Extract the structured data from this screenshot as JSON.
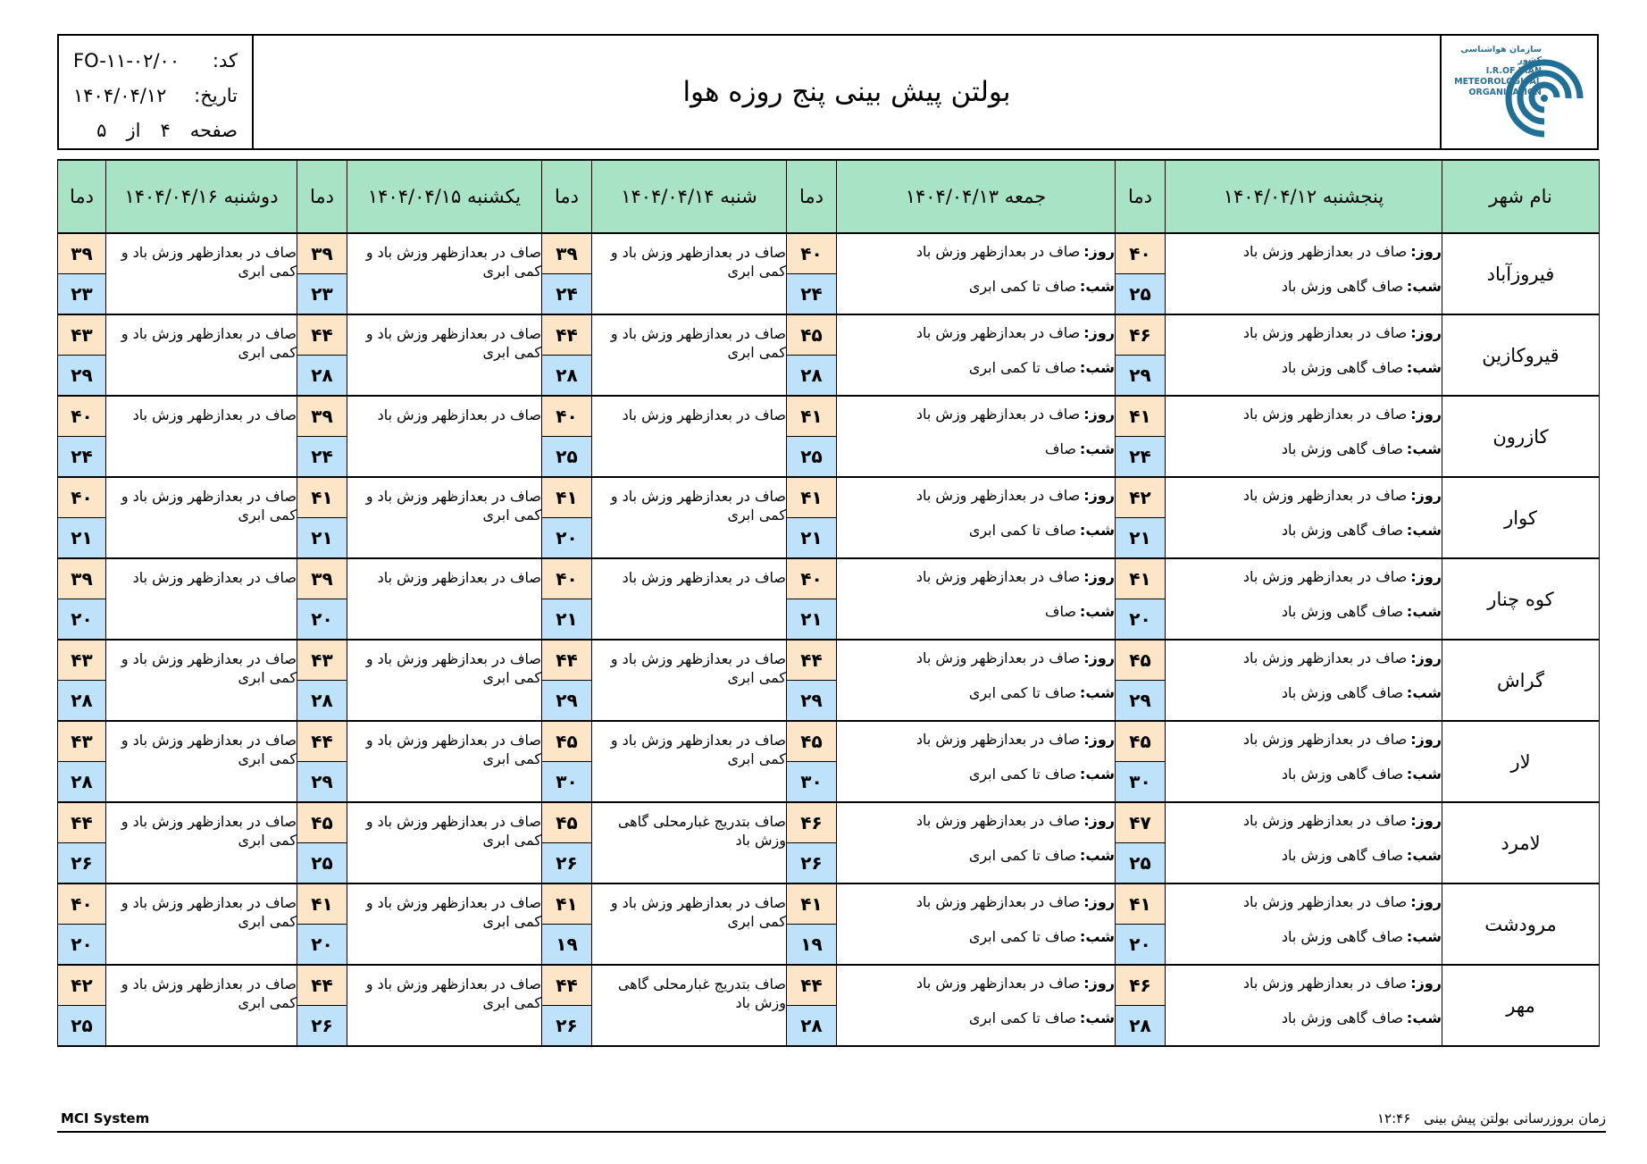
{
  "header": {
    "title": "بولتن پیش بینی پنج روزه هوا",
    "code_label": "کد:",
    "code_value": "FO-۱۱-۰۲/۰۰",
    "date_label": "تاریخ:",
    "date_value": "۱۴۰۴/۰۴/۱۲",
    "page_label": "صفحه",
    "page_current": "۴",
    "page_of": "از",
    "page_total": "۵",
    "logo_text": [
      "سازمان هواشناسی کشور",
      "I.R.OF IRAN",
      "METEOROLOGICAL",
      "ORGANIZATION"
    ],
    "logo_color": "#1f6f96"
  },
  "table": {
    "city_header": "نام شهر",
    "temp_header": "دما",
    "day_label": "روز:",
    "night_label": "شب:",
    "days": [
      "پنجشنبه ۱۴۰۴/۰۴/۱۲",
      "جمعه ۱۴۰۴/۰۴/۱۳",
      "شنبه ۱۴۰۴/۰۴/۱۴",
      "یکشنبه ۱۴۰۴/۰۴/۱۵",
      "دوشنبه ۱۴۰۴/۰۴/۱۶"
    ],
    "rows": [
      {
        "city": "فیروزآباد",
        "d1": {
          "day": "صاف در بعدازظهر وزش باد",
          "night": "صاف گاهی وزش باد",
          "hi": "۴۰",
          "lo": "۲۵"
        },
        "d2": {
          "day": "صاف در بعدازظهر وزش باد",
          "night": "صاف تا کمی ابری",
          "hi": "۴۰",
          "lo": "۲۴"
        },
        "d3": {
          "text": "صاف در بعدازظهر وزش باد و کمی ابری",
          "hi": "۳۹",
          "lo": "۲۴"
        },
        "d4": {
          "text": "صاف در بعدازظهر وزش باد و کمی ابری",
          "hi": "۳۹",
          "lo": "۲۳"
        },
        "d5": {
          "text": "صاف در بعدازظهر وزش باد و کمی ابری",
          "hi": "۳۹",
          "lo": "۲۳"
        }
      },
      {
        "city": "قیروکازین",
        "d1": {
          "day": "صاف در بعدازظهر وزش باد",
          "night": "صاف گاهی وزش باد",
          "hi": "۴۶",
          "lo": "۲۹"
        },
        "d2": {
          "day": "صاف در بعدازظهر وزش باد",
          "night": "صاف تا کمی ابری",
          "hi": "۴۵",
          "lo": "۲۸"
        },
        "d3": {
          "text": "صاف در بعدازظهر وزش باد و کمی ابری",
          "hi": "۴۴",
          "lo": "۲۸"
        },
        "d4": {
          "text": "صاف در بعدازظهر وزش باد و کمی ابری",
          "hi": "۴۴",
          "lo": "۲۸"
        },
        "d5": {
          "text": "صاف در بعدازظهر وزش باد و کمی ابری",
          "hi": "۴۳",
          "lo": "۲۹"
        }
      },
      {
        "city": "کازرون",
        "d1": {
          "day": "صاف در بعدازظهر وزش باد",
          "night": "صاف گاهی وزش باد",
          "hi": "۴۱",
          "lo": "۲۴"
        },
        "d2": {
          "day": "صاف در بعدازظهر وزش باد",
          "night": "صاف",
          "hi": "۴۱",
          "lo": "۲۵"
        },
        "d3": {
          "text": "صاف در بعدازظهر وزش باد",
          "hi": "۴۰",
          "lo": "۲۵"
        },
        "d4": {
          "text": "صاف در بعدازظهر وزش باد",
          "hi": "۳۹",
          "lo": "۲۴"
        },
        "d5": {
          "text": "صاف در بعدازظهر وزش باد",
          "hi": "۴۰",
          "lo": "۲۴"
        }
      },
      {
        "city": "کوار",
        "d1": {
          "day": "صاف در بعدازظهر وزش باد",
          "night": "صاف گاهی وزش باد",
          "hi": "۴۲",
          "lo": "۲۱"
        },
        "d2": {
          "day": "صاف در بعدازظهر وزش باد",
          "night": "صاف تا کمی ابری",
          "hi": "۴۱",
          "lo": "۲۱"
        },
        "d3": {
          "text": "صاف در بعدازظهر وزش باد و کمی ابری",
          "hi": "۴۱",
          "lo": "۲۰"
        },
        "d4": {
          "text": "صاف در بعدازظهر وزش باد و کمی ابری",
          "hi": "۴۱",
          "lo": "۲۱"
        },
        "d5": {
          "text": "صاف در بعدازظهر وزش باد و کمی ابری",
          "hi": "۴۰",
          "lo": "۲۱"
        }
      },
      {
        "city": "کوه چنار",
        "d1": {
          "day": "صاف در بعدازظهر وزش باد",
          "night": "صاف گاهی وزش باد",
          "hi": "۴۱",
          "lo": "۲۰"
        },
        "d2": {
          "day": "صاف در بعدازظهر وزش باد",
          "night": "صاف",
          "hi": "۴۰",
          "lo": "۲۱"
        },
        "d3": {
          "text": "صاف در بعدازظهر وزش باد",
          "hi": "۴۰",
          "lo": "۲۱"
        },
        "d4": {
          "text": "صاف در بعدازظهر وزش باد",
          "hi": "۳۹",
          "lo": "۲۰"
        },
        "d5": {
          "text": "صاف در بعدازظهر وزش باد",
          "hi": "۳۹",
          "lo": "۲۰"
        }
      },
      {
        "city": "گراش",
        "d1": {
          "day": "صاف در بعدازظهر وزش باد",
          "night": "صاف گاهی وزش باد",
          "hi": "۴۵",
          "lo": "۲۹"
        },
        "d2": {
          "day": "صاف در بعدازظهر وزش باد",
          "night": "صاف تا کمی ابری",
          "hi": "۴۴",
          "lo": "۲۹"
        },
        "d3": {
          "text": "صاف در بعدازظهر وزش باد و کمی ابری",
          "hi": "۴۴",
          "lo": "۲۹"
        },
        "d4": {
          "text": "صاف در بعدازظهر وزش باد و کمی ابری",
          "hi": "۴۳",
          "lo": "۲۸"
        },
        "d5": {
          "text": "صاف در بعدازظهر وزش باد و کمی ابری",
          "hi": "۴۳",
          "lo": "۲۸"
        }
      },
      {
        "city": "لار",
        "d1": {
          "day": "صاف در بعدازظهر وزش باد",
          "night": "صاف گاهی وزش باد",
          "hi": "۴۵",
          "lo": "۳۰"
        },
        "d2": {
          "day": "صاف در بعدازظهر وزش باد",
          "night": "صاف تا کمی ابری",
          "hi": "۴۵",
          "lo": "۳۰"
        },
        "d3": {
          "text": "صاف در بعدازظهر وزش باد و کمی ابری",
          "hi": "۴۵",
          "lo": "۳۰"
        },
        "d4": {
          "text": "صاف در بعدازظهر وزش باد و کمی ابری",
          "hi": "۴۴",
          "lo": "۲۹"
        },
        "d5": {
          "text": "صاف در بعدازظهر وزش باد و کمی ابری",
          "hi": "۴۳",
          "lo": "۲۸"
        }
      },
      {
        "city": "لامرد",
        "d1": {
          "day": "صاف در بعدازظهر وزش باد",
          "night": "صاف گاهی وزش باد",
          "hi": "۴۷",
          "lo": "۲۵"
        },
        "d2": {
          "day": "صاف در بعدازظهر وزش باد",
          "night": "صاف تا کمی ابری",
          "hi": "۴۶",
          "lo": "۲۶"
        },
        "d3": {
          "text": "صاف بتدریج غبارمحلی گاهی وزش باد",
          "hi": "۴۵",
          "lo": "۲۶"
        },
        "d4": {
          "text": "صاف در بعدازظهر وزش باد و کمی ابری",
          "hi": "۴۵",
          "lo": "۲۵"
        },
        "d5": {
          "text": "صاف در بعدازظهر وزش باد و کمی ابری",
          "hi": "۴۴",
          "lo": "۲۶"
        }
      },
      {
        "city": "مرودشت",
        "d1": {
          "day": "صاف در بعدازظهر وزش باد",
          "night": "صاف گاهی وزش باد",
          "hi": "۴۱",
          "lo": "۲۰"
        },
        "d2": {
          "day": "صاف در بعدازظهر وزش باد",
          "night": "صاف تا کمی ابری",
          "hi": "۴۱",
          "lo": "۱۹"
        },
        "d3": {
          "text": "صاف در بعدازظهر وزش باد و کمی ابری",
          "hi": "۴۱",
          "lo": "۱۹"
        },
        "d4": {
          "text": "صاف در بعدازظهر وزش باد و کمی ابری",
          "hi": "۴۱",
          "lo": "۲۰"
        },
        "d5": {
          "text": "صاف در بعدازظهر وزش باد و کمی ابری",
          "hi": "۴۰",
          "lo": "۲۰"
        }
      },
      {
        "city": "مهر",
        "d1": {
          "day": "صاف در بعدازظهر وزش باد",
          "night": "صاف گاهی وزش باد",
          "hi": "۴۶",
          "lo": "۲۸"
        },
        "d2": {
          "day": "صاف در بعدازظهر وزش باد",
          "night": "صاف تا کمی ابری",
          "hi": "۴۴",
          "lo": "۲۸"
        },
        "d3": {
          "text": "صاف بتدریج غبارمحلی گاهی وزش باد",
          "hi": "۴۴",
          "lo": "۲۶"
        },
        "d4": {
          "text": "صاف در بعدازظهر وزش باد و کمی ابری",
          "hi": "۴۴",
          "lo": "۲۶"
        },
        "d5": {
          "text": "صاف در بعدازظهر وزش باد و کمی ابری",
          "hi": "۴۲",
          "lo": "۲۵"
        }
      }
    ]
  },
  "footer": {
    "system": "MCI System",
    "update_label": "زمان بروزرسانی بولتن پیش بینی",
    "update_time": "۱۲:۴۶"
  },
  "colors": {
    "header_green": "#a9e3c5",
    "temp_high": "#fde5c7",
    "temp_low": "#bfe2fb"
  }
}
